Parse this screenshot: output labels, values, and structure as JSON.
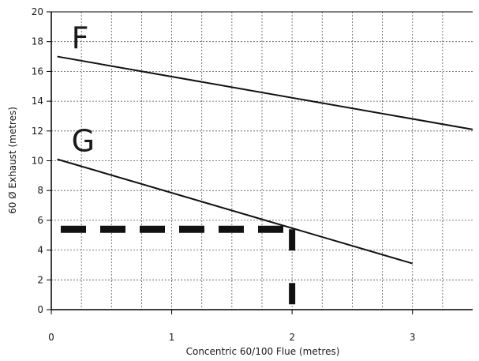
{
  "chart_data": {
    "type": "line",
    "xlabel": "Concentric 60/100 Flue (metres)",
    "ylabel": "60 Ø Exhaust (metres)",
    "xlim": [
      0,
      3.5
    ],
    "ylim": [
      0,
      20
    ],
    "x_ticks": [
      0,
      1,
      2,
      3
    ],
    "y_ticks": [
      0,
      2,
      4,
      6,
      8,
      10,
      12,
      14,
      16,
      18,
      20
    ],
    "grid": true,
    "grid_step_x": 0.25,
    "grid_step_y": 2,
    "series": [
      {
        "name": "F",
        "x": [
          0.05,
          3.5
        ],
        "y": [
          17,
          12.1
        ]
      },
      {
        "name": "G",
        "x": [
          0.05,
          3.0
        ],
        "y": [
          10.1,
          3.1
        ]
      }
    ],
    "annotation": {
      "style": "dashed",
      "x": 2.0,
      "y": 5.4,
      "color": "#111111"
    },
    "colors": {
      "line": "#111111",
      "grid": "#555555",
      "axis": "#000000"
    }
  }
}
